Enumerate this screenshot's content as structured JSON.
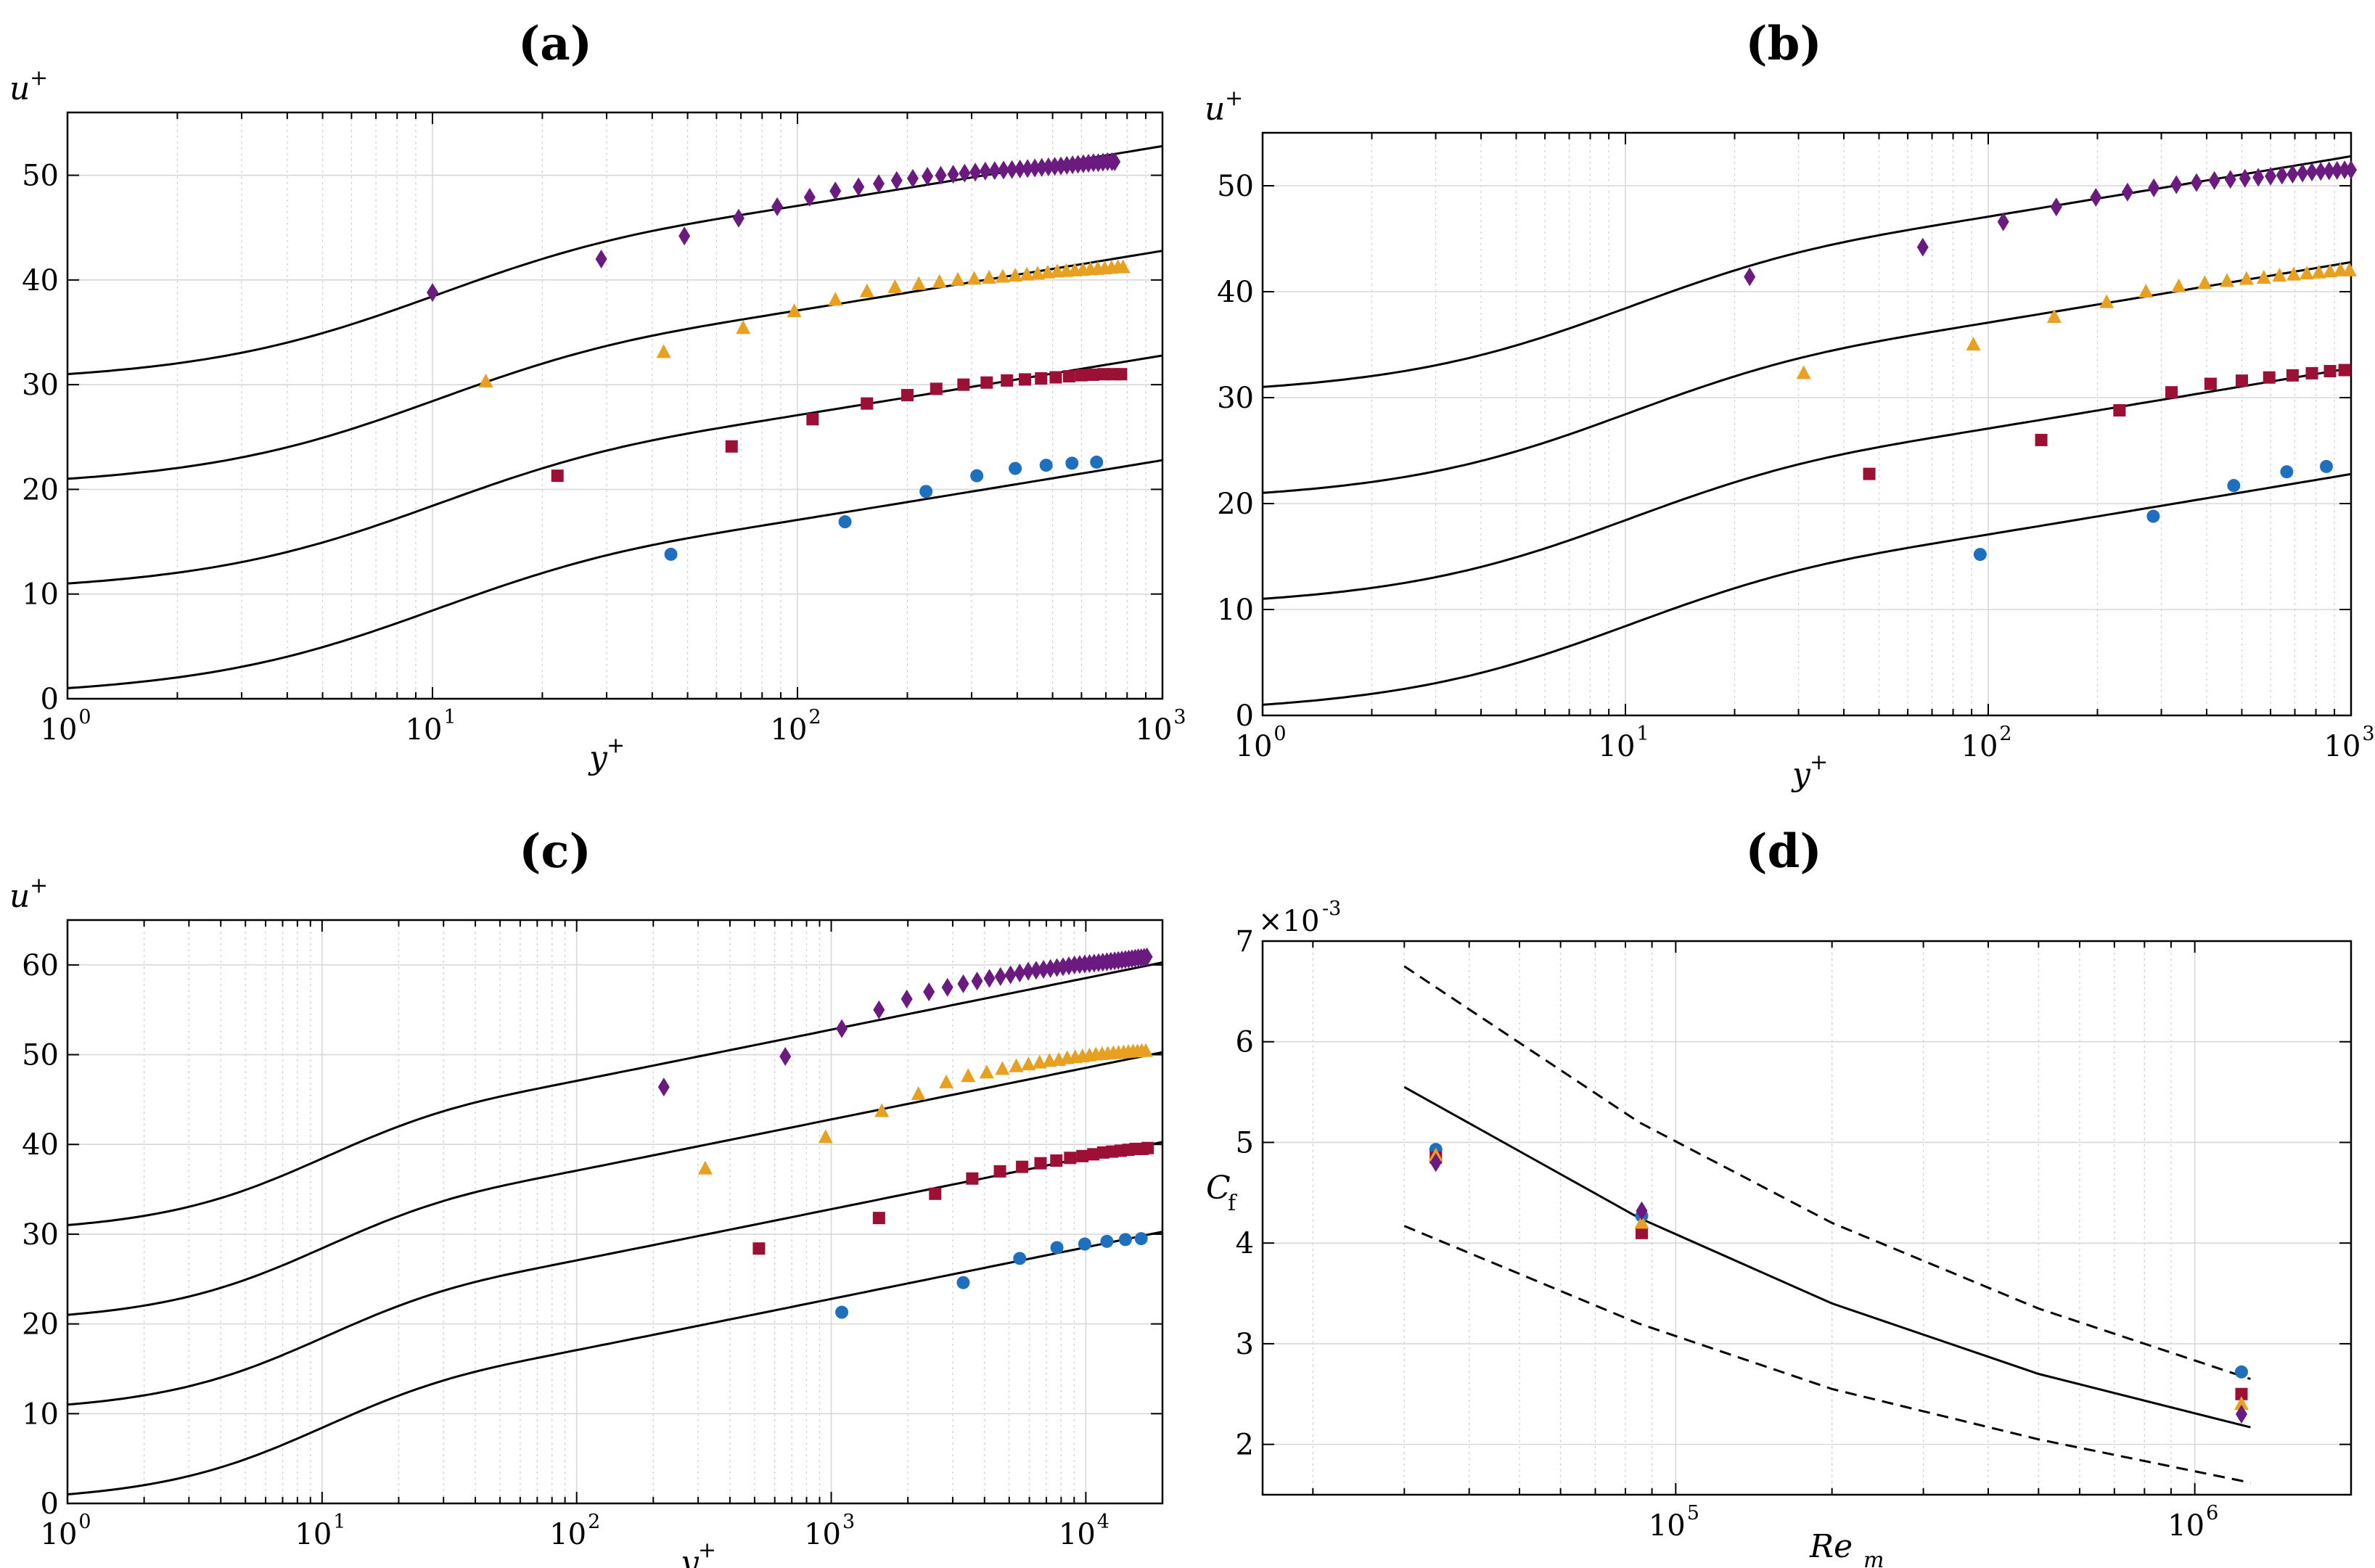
{
  "chart_data": [
    {
      "panel": "(a)",
      "type": "scatter",
      "title": "(a)",
      "xlabel": "y",
      "xlabel_sup": "+",
      "ylabel": "u",
      "ylabel_sup": "+",
      "xscale": "log",
      "xlim": [
        1,
        1000
      ],
      "ylim": [
        0,
        56
      ],
      "yticks": [
        0,
        10,
        20,
        30,
        40,
        50
      ],
      "xtick_exponents": [
        0,
        1,
        2,
        3
      ],
      "grid": true,
      "model_offsets": [
        0,
        10,
        20,
        30
      ],
      "series": [
        {
          "name": "circle",
          "marker": "circle",
          "color": "#1f6fbf",
          "x": [
            45,
            135,
            225,
            310,
            395,
            480,
            565,
            660
          ],
          "y": [
            13.8,
            16.9,
            19.8,
            21.3,
            22.0,
            22.3,
            22.5,
            22.6
          ]
        },
        {
          "name": "square",
          "marker": "square",
          "color": "#9b1034",
          "x": [
            22,
            66,
            110,
            155,
            200,
            240,
            285,
            330,
            375,
            420,
            465,
            510,
            555,
            600,
            645,
            690,
            735,
            770
          ],
          "y": [
            21.3,
            24.1,
            26.7,
            28.2,
            29.0,
            29.6,
            30.0,
            30.2,
            30.4,
            30.5,
            30.6,
            30.7,
            30.8,
            30.9,
            30.95,
            31.0,
            31.0,
            31.0
          ]
        },
        {
          "name": "triangle",
          "marker": "triangle",
          "color": "#e8a020",
          "x": [
            14,
            43,
            71,
            98,
            127,
            155,
            185,
            215,
            245,
            275,
            305,
            335,
            365,
            395,
            425,
            455,
            485,
            515,
            545,
            575,
            605,
            635,
            665,
            695,
            725,
            755,
            780
          ],
          "y": [
            30.3,
            33.1,
            35.4,
            37.0,
            38.1,
            38.9,
            39.3,
            39.6,
            39.8,
            40.0,
            40.1,
            40.2,
            40.3,
            40.4,
            40.5,
            40.6,
            40.7,
            40.8,
            40.85,
            40.9,
            40.95,
            41.0,
            41.05,
            41.1,
            41.15,
            41.2,
            41.2
          ]
        },
        {
          "name": "diamond",
          "marker": "diamond",
          "color": "#6b1a80",
          "x": [
            10,
            29,
            49,
            69,
            88,
            108,
            127,
            147,
            167,
            187,
            207,
            227,
            247,
            267,
            287,
            307,
            327,
            347,
            367,
            387,
            407,
            427,
            447,
            467,
            487,
            507,
            527,
            547,
            567,
            587,
            607,
            627,
            647,
            667,
            687,
            707,
            727,
            740
          ],
          "y": [
            38.8,
            42.0,
            44.2,
            45.9,
            47.0,
            47.9,
            48.5,
            48.9,
            49.2,
            49.5,
            49.7,
            49.9,
            50.0,
            50.1,
            50.2,
            50.3,
            50.4,
            50.45,
            50.5,
            50.55,
            50.6,
            50.65,
            50.7,
            50.75,
            50.8,
            50.85,
            50.9,
            50.95,
            51.0,
            51.05,
            51.1,
            51.15,
            51.2,
            51.2,
            51.25,
            51.3,
            51.3,
            51.3
          ]
        }
      ]
    },
    {
      "panel": "(b)",
      "type": "scatter",
      "title": "(b)",
      "xlabel": "y",
      "xlabel_sup": "+",
      "ylabel": "u",
      "ylabel_sup": "+",
      "xscale": "log",
      "xlim": [
        1,
        1000
      ],
      "ylim": [
        0,
        55
      ],
      "yticks": [
        0,
        10,
        20,
        30,
        40,
        50
      ],
      "xtick_exponents": [
        0,
        1,
        2,
        3
      ],
      "grid": true,
      "model_offsets": [
        0,
        10,
        20,
        30
      ],
      "series": [
        {
          "name": "circle",
          "marker": "circle",
          "color": "#1f6fbf",
          "x": [
            95,
            285,
            475,
            665,
            855
          ],
          "y": [
            15.2,
            18.8,
            21.7,
            23.0,
            23.5
          ]
        },
        {
          "name": "square",
          "marker": "square",
          "color": "#9b1034",
          "x": [
            47,
            140,
            230,
            320,
            410,
            500,
            595,
            690,
            780,
            875,
            960
          ],
          "y": [
            22.8,
            26.0,
            28.8,
            30.5,
            31.3,
            31.6,
            31.9,
            32.1,
            32.3,
            32.5,
            32.6
          ]
        },
        {
          "name": "triangle",
          "marker": "triangle",
          "color": "#e8a020",
          "x": [
            31,
            91,
            152,
            212,
            272,
            335,
            395,
            455,
            515,
            575,
            635,
            695,
            755,
            815,
            875,
            935,
            990
          ],
          "y": [
            32.3,
            35.0,
            37.6,
            39.0,
            40.0,
            40.5,
            40.8,
            41.0,
            41.2,
            41.3,
            41.5,
            41.6,
            41.7,
            41.8,
            41.9,
            42.0,
            42.0
          ]
        },
        {
          "name": "diamond",
          "marker": "diamond",
          "color": "#6b1a80",
          "x": [
            22,
            66,
            110,
            154,
            198,
            242,
            286,
            330,
            375,
            420,
            465,
            510,
            555,
            600,
            645,
            690,
            735,
            780,
            825,
            870,
            915,
            960,
            1000
          ],
          "y": [
            41.4,
            44.2,
            46.6,
            48.0,
            48.9,
            49.4,
            49.8,
            50.1,
            50.3,
            50.5,
            50.6,
            50.7,
            50.8,
            50.9,
            51.0,
            51.1,
            51.2,
            51.3,
            51.35,
            51.4,
            51.45,
            51.5,
            51.5
          ]
        }
      ]
    },
    {
      "panel": "(c)",
      "type": "scatter",
      "title": "(c)",
      "xlabel": "y",
      "xlabel_sup": "+",
      "ylabel": "u",
      "ylabel_sup": "+",
      "xscale": "log",
      "xlim": [
        1,
        20000
      ],
      "ylim": [
        0,
        65
      ],
      "yticks": [
        0,
        10,
        20,
        30,
        40,
        50,
        60
      ],
      "xtick_exponents": [
        0,
        1,
        2,
        3,
        4
      ],
      "grid": true,
      "model_offsets": [
        0,
        10,
        20,
        30
      ],
      "series": [
        {
          "name": "circle",
          "marker": "circle",
          "color": "#1f6fbf",
          "x": [
            1100,
            3300,
            5500,
            7700,
            9900,
            12100,
            14300,
            16500
          ],
          "y": [
            21.3,
            24.6,
            27.3,
            28.5,
            28.9,
            29.2,
            29.4,
            29.5
          ]
        },
        {
          "name": "square",
          "marker": "square",
          "color": "#9b1034",
          "x": [
            520,
            1540,
            2560,
            3580,
            4600,
            5620,
            6640,
            7660,
            8680,
            9700,
            10700,
            11700,
            12700,
            13700,
            14700,
            15700,
            16700,
            17500
          ],
          "y": [
            28.4,
            31.8,
            34.5,
            36.2,
            37.0,
            37.5,
            37.9,
            38.2,
            38.5,
            38.7,
            38.9,
            39.1,
            39.2,
            39.3,
            39.4,
            39.5,
            39.5,
            39.6
          ]
        },
        {
          "name": "triangle",
          "marker": "triangle",
          "color": "#e8a020",
          "x": [
            320,
            950,
            1580,
            2200,
            2830,
            3450,
            4080,
            4700,
            5330,
            5950,
            6580,
            7200,
            7830,
            8450,
            9080,
            9700,
            10330,
            10950,
            11580,
            12200,
            12830,
            13450,
            14080,
            14700,
            15330,
            15950,
            16580,
            17200
          ],
          "y": [
            37.3,
            40.8,
            43.7,
            45.6,
            46.9,
            47.6,
            48.0,
            48.4,
            48.7,
            48.9,
            49.1,
            49.3,
            49.4,
            49.6,
            49.7,
            49.8,
            49.9,
            50.0,
            50.05,
            50.1,
            50.15,
            50.2,
            50.25,
            50.3,
            50.35,
            50.35,
            50.4,
            50.4
          ]
        },
        {
          "name": "diamond",
          "marker": "diamond",
          "color": "#6b1a80",
          "x": [
            220,
            660,
            1100,
            1540,
            1980,
            2420,
            2860,
            3300,
            3740,
            4180,
            4620,
            5060,
            5500,
            5940,
            6380,
            6820,
            7260,
            7700,
            8140,
            8580,
            9020,
            9460,
            9900,
            10340,
            10780,
            11220,
            11660,
            12100,
            12540,
            12980,
            13420,
            13860,
            14300,
            14740,
            15180,
            15620,
            16060,
            16500,
            16940,
            17380
          ],
          "y": [
            46.4,
            49.8,
            52.9,
            55.0,
            56.2,
            57.0,
            57.5,
            57.9,
            58.2,
            58.5,
            58.7,
            58.9,
            59.1,
            59.3,
            59.4,
            59.5,
            59.6,
            59.7,
            59.8,
            59.9,
            60.0,
            60.05,
            60.1,
            60.15,
            60.2,
            60.25,
            60.3,
            60.35,
            60.4,
            60.45,
            60.5,
            60.55,
            60.6,
            60.65,
            60.7,
            60.75,
            60.8,
            60.8,
            60.85,
            60.9
          ]
        }
      ]
    },
    {
      "panel": "(d)",
      "type": "scatter",
      "title": "(d)",
      "xlabel": "Re",
      "xlabel_sub": "m",
      "ylabel": "C",
      "ylabel_sub": "f",
      "yscale_label": "×10",
      "yscale_exp": "-3",
      "xscale": "log",
      "xlim": [
        16000,
        2000000
      ],
      "ylim": [
        1.5,
        7
      ],
      "yticks": [
        2,
        3,
        4,
        5,
        6,
        7
      ],
      "xtick_exponents": [
        5,
        6
      ],
      "grid": true,
      "curves": [
        {
          "name": "solid",
          "style": "solid",
          "x": [
            30000,
            85000,
            200000,
            500000,
            1280000
          ],
          "y": [
            5.55,
            4.25,
            3.4,
            2.7,
            2.17
          ]
        },
        {
          "name": "dashed-upper",
          "style": "dashed",
          "x": [
            30000,
            85000,
            200000,
            500000,
            1280000
          ],
          "y": [
            6.75,
            5.2,
            4.2,
            3.35,
            2.65
          ]
        },
        {
          "name": "dashed-lower",
          "style": "dashed",
          "x": [
            30000,
            85000,
            200000,
            500000,
            1280000
          ],
          "y": [
            4.17,
            3.2,
            2.55,
            2.05,
            1.62
          ]
        }
      ],
      "series": [
        {
          "name": "circle",
          "marker": "circle",
          "color": "#1f6fbf",
          "x": [
            34500,
            86000,
            1230000
          ],
          "y": [
            4.93,
            4.27,
            2.72
          ]
        },
        {
          "name": "square",
          "marker": "square",
          "color": "#9b1034",
          "x": [
            34500,
            86000,
            1230000
          ],
          "y": [
            4.85,
            4.1,
            2.5
          ]
        },
        {
          "name": "triangle",
          "marker": "triangle",
          "color": "#e8a020",
          "x": [
            34500,
            86000,
            1230000
          ],
          "y": [
            4.87,
            4.2,
            2.4
          ]
        },
        {
          "name": "diamond",
          "marker": "diamond",
          "color": "#6b1a80",
          "x": [
            34500,
            86000,
            1230000
          ],
          "y": [
            4.8,
            4.32,
            2.3
          ]
        }
      ]
    }
  ]
}
